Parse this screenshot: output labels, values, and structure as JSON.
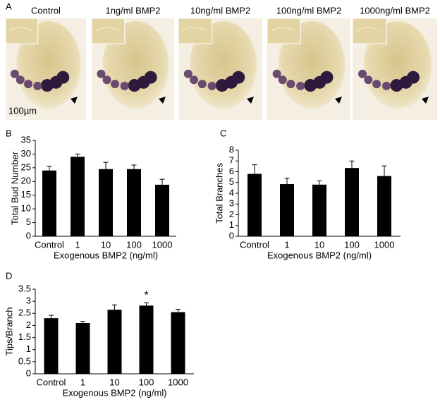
{
  "panel_a": {
    "label": "A",
    "images": [
      "Control",
      "1ng/ml BMP2",
      "10ng/ml BMP2",
      "100ng/ml BMP2",
      "1000ng/ml BMP2"
    ],
    "scale_bar": "100µm"
  },
  "chart_data": [
    {
      "type": "bar",
      "label": "B",
      "categories": [
        "Control",
        "1",
        "10",
        "100",
        "1000"
      ],
      "values": [
        24,
        29,
        24.5,
        24.5,
        18.8
      ],
      "errors": [
        1.5,
        1,
        2.5,
        1.5,
        2
      ],
      "color": "#000000",
      "ylim": [
        0,
        35
      ],
      "yticks": [
        0,
        5,
        10,
        15,
        20,
        25,
        30,
        35
      ],
      "ylabel": "Total Bud Number",
      "xlabel": "Exogenous BMP2 (ng/ml)"
    },
    {
      "type": "bar",
      "label": "C",
      "categories": [
        "Control",
        "1",
        "10",
        "100",
        "1000"
      ],
      "values": [
        5.8,
        4.85,
        4.8,
        6.35,
        5.6
      ],
      "errors": [
        0.85,
        0.55,
        0.35,
        0.65,
        0.95
      ],
      "color": "#000000",
      "ylim": [
        0,
        8
      ],
      "yticks": [
        0,
        1,
        2,
        3,
        4,
        5,
        6,
        7,
        8
      ],
      "ylabel": "Total Branches",
      "xlabel": "Exogenous BMP2 (ng/ml)"
    },
    {
      "type": "bar",
      "label": "D",
      "categories": [
        "Control",
        "1",
        "10",
        "100",
        "1000"
      ],
      "values": [
        2.3,
        2.1,
        2.65,
        2.82,
        2.55
      ],
      "errors": [
        0.12,
        0.07,
        0.2,
        0.12,
        0.12
      ],
      "color": "#000000",
      "ylim": [
        0,
        3.5
      ],
      "yticks": [
        0,
        0.5,
        1,
        1.5,
        2,
        2.5,
        3,
        3.5
      ],
      "ylabel": "Tips/Branch",
      "xlabel": "Exogenous BMP2 (ng/ml)",
      "annotation": "*"
    }
  ]
}
